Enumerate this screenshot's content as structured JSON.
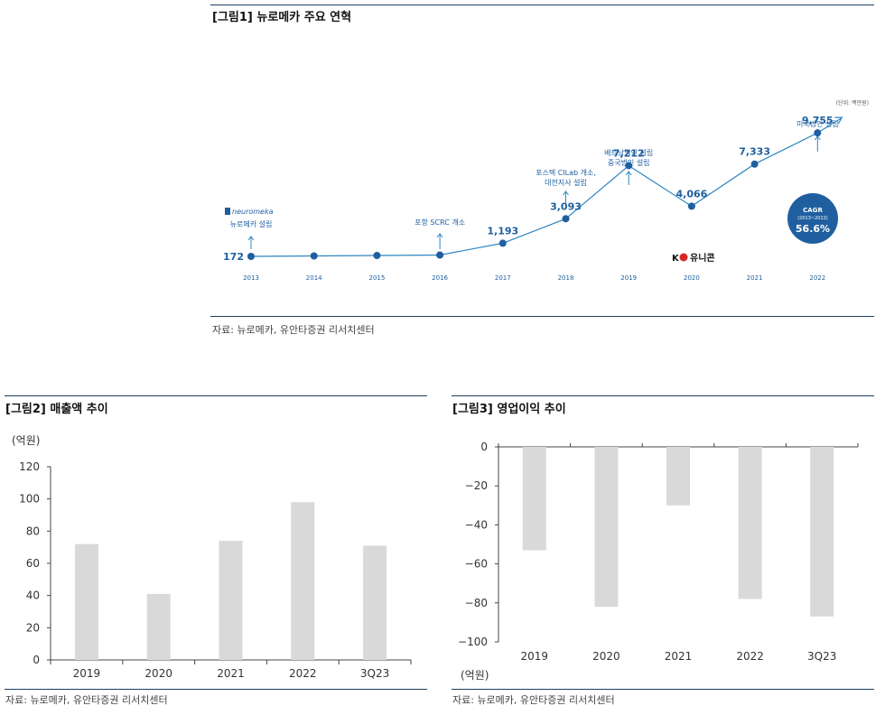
{
  "fig1": {
    "title": "[그림1] 뉴로메카 주요 연혁",
    "unit": "(단위: 백만원)",
    "source": "자료: 뉴로메카, 유안타증권 리서치센터",
    "logo_text": "neuromeka",
    "unicorn_text": "유니콘",
    "unicorn_mark": "K",
    "cagr_title": "CAGR",
    "cagr_period": "(2013~2022)",
    "cagr_value": "56.6%",
    "color": "#2e86c1"
  },
  "fig2": {
    "title": "[그림2] 매출액 추이",
    "unit": "(억원)",
    "source": "자료: 뉴로메카, 유안타증권 리서치센터"
  },
  "fig3": {
    "title": "[그림3] 영업이익 추이",
    "unit": "(억원)",
    "source": "자료: 뉴로메카, 유안타증권 리서치센터"
  },
  "chart_data": [
    {
      "type": "line",
      "x": [
        "2013",
        "2014",
        "2015",
        "2016",
        "2017",
        "2018",
        "2019",
        "2020",
        "2021",
        "2022"
      ],
      "values": [
        172,
        null,
        null,
        null,
        1193,
        3093,
        7212,
        4066,
        7333,
        9755
      ],
      "value_labels": [
        "172",
        "",
        "",
        "",
        "1,193",
        "3,093",
        "7,212",
        "4,066",
        "7,333",
        "9,755"
      ],
      "annotations": [
        {
          "x": "2013",
          "lines": [
            "뉴로메카 설립"
          ]
        },
        {
          "x": "2016",
          "lines": [
            "포항 SCRC 개소"
          ]
        },
        {
          "x": "2018",
          "lines": [
            "포스텍 CILab 개소,",
            "대전지사 설립"
          ]
        },
        {
          "x": "2019",
          "lines": [
            "베트남법인 설립",
            "중국법인 설립"
          ]
        },
        {
          "x": "2022",
          "lines": [
            "미국법인 설립"
          ]
        }
      ]
    },
    {
      "type": "bar",
      "categories": [
        "2019",
        "2020",
        "2021",
        "2022",
        "3Q23"
      ],
      "values": [
        72,
        41,
        74,
        98,
        71
      ],
      "yticks": [
        "0",
        "20",
        "40",
        "60",
        "80",
        "100",
        "120"
      ],
      "ylim": [
        0,
        120
      ],
      "color": "#d9d9d9"
    },
    {
      "type": "bar",
      "categories": [
        "2019",
        "2020",
        "2021",
        "2022",
        "3Q23"
      ],
      "values": [
        -53,
        -82,
        -30,
        -78,
        -87
      ],
      "yticks": [
        "0",
        "-20",
        "-40",
        "-60",
        "-80",
        "-100"
      ],
      "ylim": [
        -100,
        0
      ],
      "color": "#d9d9d9"
    }
  ]
}
